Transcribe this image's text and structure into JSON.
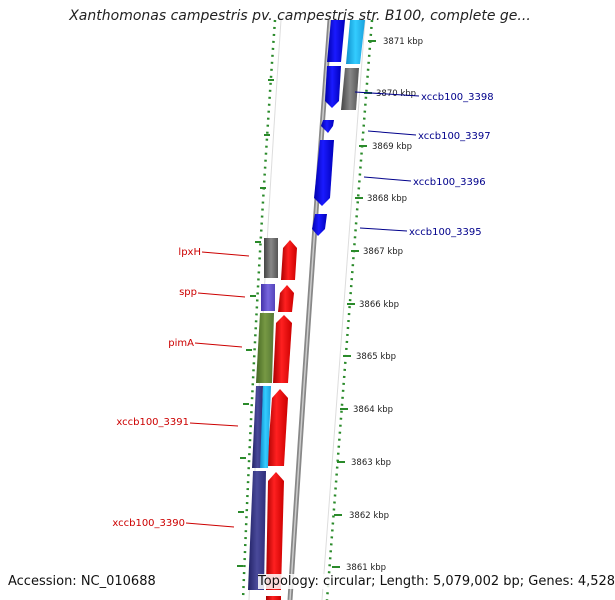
{
  "title": "Xanthomonas campestris pv. campestris str. B100, complete ge...",
  "footer": {
    "accession": "Accession: NC_010688",
    "summary": "Topology: circular; Length: 5,079,002 bp; Genes: 4,528"
  },
  "scale_ticks": [
    "3871 kbp",
    "3870 kbp",
    "3869 kbp",
    "3868 kbp",
    "3867 kbp",
    "3866 kbp",
    "3865 kbp",
    "3864 kbp",
    "3863 kbp",
    "3862 kbp",
    "3861 kbp"
  ],
  "genes_right": [
    {
      "label": "xccb100_3398",
      "color": "#00008b"
    },
    {
      "label": "xccb100_3397",
      "color": "#00008b"
    },
    {
      "label": "xccb100_3396",
      "color": "#00008b"
    },
    {
      "label": "xccb100_3395",
      "color": "#00008b"
    }
  ],
  "genes_left": [
    {
      "label": "lpxH",
      "color": "#cc0000"
    },
    {
      "label": "spp",
      "color": "#cc0000"
    },
    {
      "label": "pimA",
      "color": "#cc0000"
    },
    {
      "label": "xccb100_3391",
      "color": "#cc0000"
    },
    {
      "label": "xccb100_3390",
      "color": "#cc0000"
    }
  ],
  "feature_colors": {
    "forward_cds": "#ff0000",
    "reverse_cds": "#0000ee",
    "cyan_feature": "#22bbee",
    "grey_feature": "#666666",
    "violet_feature": "#6655cc",
    "olive_feature": "#668833",
    "navy_feature": "#3a3a8a",
    "backbone": "#888888",
    "tick_dots": "#2a8a2a"
  }
}
